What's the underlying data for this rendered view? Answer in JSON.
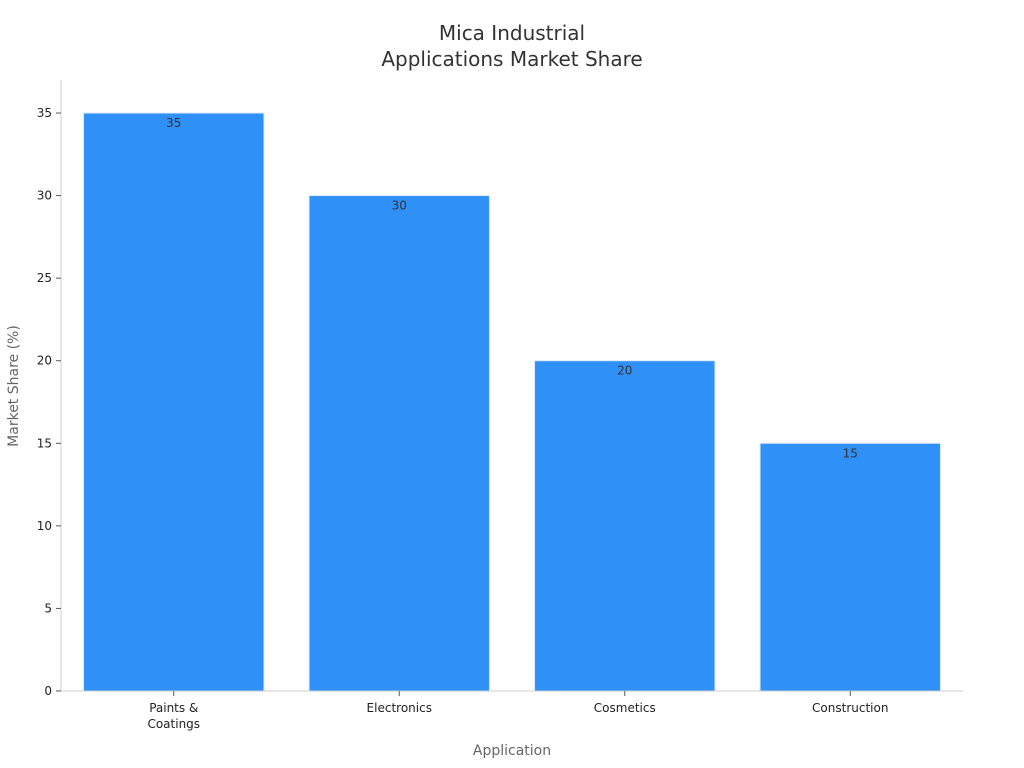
{
  "chart_data": {
    "type": "bar",
    "title_lines": [
      "Mica Industrial",
      "Applications Market Share"
    ],
    "xlabel": "Application",
    "ylabel": "Market Share (%)",
    "categories": [
      [
        "Paints &",
        "Coatings"
      ],
      [
        "Electronics"
      ],
      [
        "Cosmetics"
      ],
      [
        "Construction"
      ]
    ],
    "values": [
      35,
      30,
      20,
      15
    ],
    "ylim": [
      0,
      37
    ],
    "yticks": [
      0,
      5,
      10,
      15,
      20,
      25,
      30,
      35
    ],
    "grid": false,
    "colors": {
      "bar": "#2f90f7",
      "bar_edge": "#d9e9fb",
      "axis": "#cccccc",
      "tick": "#555555"
    }
  }
}
